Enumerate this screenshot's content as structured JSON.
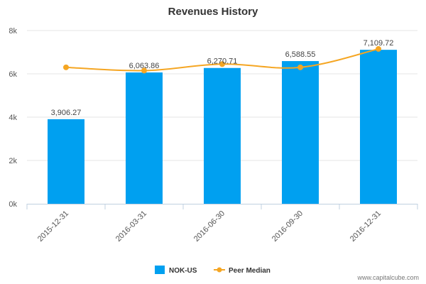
{
  "chart_data": {
    "type": "bar",
    "title": "Revenues History",
    "categories": [
      "2015-12-31",
      "2016-03-31",
      "2016-06-30",
      "2016-09-30",
      "2016-12-31"
    ],
    "series": [
      {
        "name": "NOK-US",
        "type": "bar",
        "color": "#00a0f0",
        "values": [
          3906.27,
          6063.86,
          6270.71,
          6588.55,
          7109.72
        ],
        "labels": [
          "3,906.27",
          "6,063.86",
          "6,270.71",
          "6,588.55",
          "7,109.72"
        ]
      },
      {
        "name": "Peer Median",
        "type": "line",
        "color": "#f5a623",
        "values": [
          6300,
          6150,
          6450,
          6300,
          7150
        ]
      }
    ],
    "y_ticks": [
      {
        "value": 0,
        "label": "0k"
      },
      {
        "value": 2000,
        "label": "2k"
      },
      {
        "value": 4000,
        "label": "4k"
      },
      {
        "value": 6000,
        "label": "6k"
      },
      {
        "value": 8000,
        "label": "8k"
      }
    ],
    "ylim": [
      0,
      8000
    ],
    "grid": true,
    "legend_position": "bottom-center"
  },
  "credit": "www.capitalcube.com"
}
